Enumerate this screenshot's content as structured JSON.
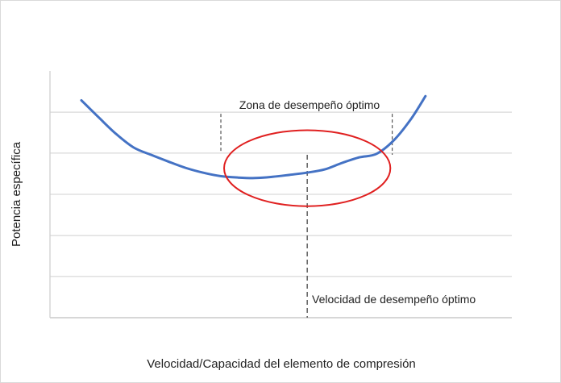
{
  "chart_data": {
    "type": "line",
    "title": "",
    "xlabel": "Velocidad/Capacidad del elemento de compresión",
    "ylabel": "Potencia específica",
    "grid": true,
    "axis_ticks_shown": false,
    "xlim": [
      0,
      100
    ],
    "ylim": [
      0,
      100
    ],
    "series": [
      {
        "color": "#4472c4",
        "points": [
          [
            6.8,
            88.1
          ],
          [
            10.6,
            81.1
          ],
          [
            14.3,
            74.5
          ],
          [
            18.1,
            69.0
          ],
          [
            21.9,
            66.0
          ],
          [
            25.6,
            63.3
          ],
          [
            29.4,
            60.7
          ],
          [
            33.1,
            58.8
          ],
          [
            36.9,
            57.4
          ],
          [
            40.7,
            56.8
          ],
          [
            44.4,
            56.6
          ],
          [
            48.2,
            57.1
          ],
          [
            51.9,
            57.9
          ],
          [
            55.7,
            58.8
          ],
          [
            59.5,
            60.1
          ],
          [
            63.2,
            62.7
          ],
          [
            67.0,
            65.0
          ],
          [
            70.7,
            66.4
          ],
          [
            74.5,
            72.0
          ],
          [
            78.2,
            80.6
          ],
          [
            81.3,
            89.8
          ]
        ]
      }
    ],
    "annotations": {
      "optimal_zone_label": "Zona de desempeño óptimo",
      "optimal_speed_label": "Velocidad de desempeño óptimo",
      "optimal_zone_x_range": [
        37.0,
        74.1
      ],
      "optimal_speed_x": 55.7,
      "highlight_ellipse": {
        "center": [
          55.7,
          60.6
        ],
        "radius_x": 18.0,
        "radius_y": 15.4,
        "color": "#e02020"
      },
      "line_color": "#555555"
    }
  }
}
